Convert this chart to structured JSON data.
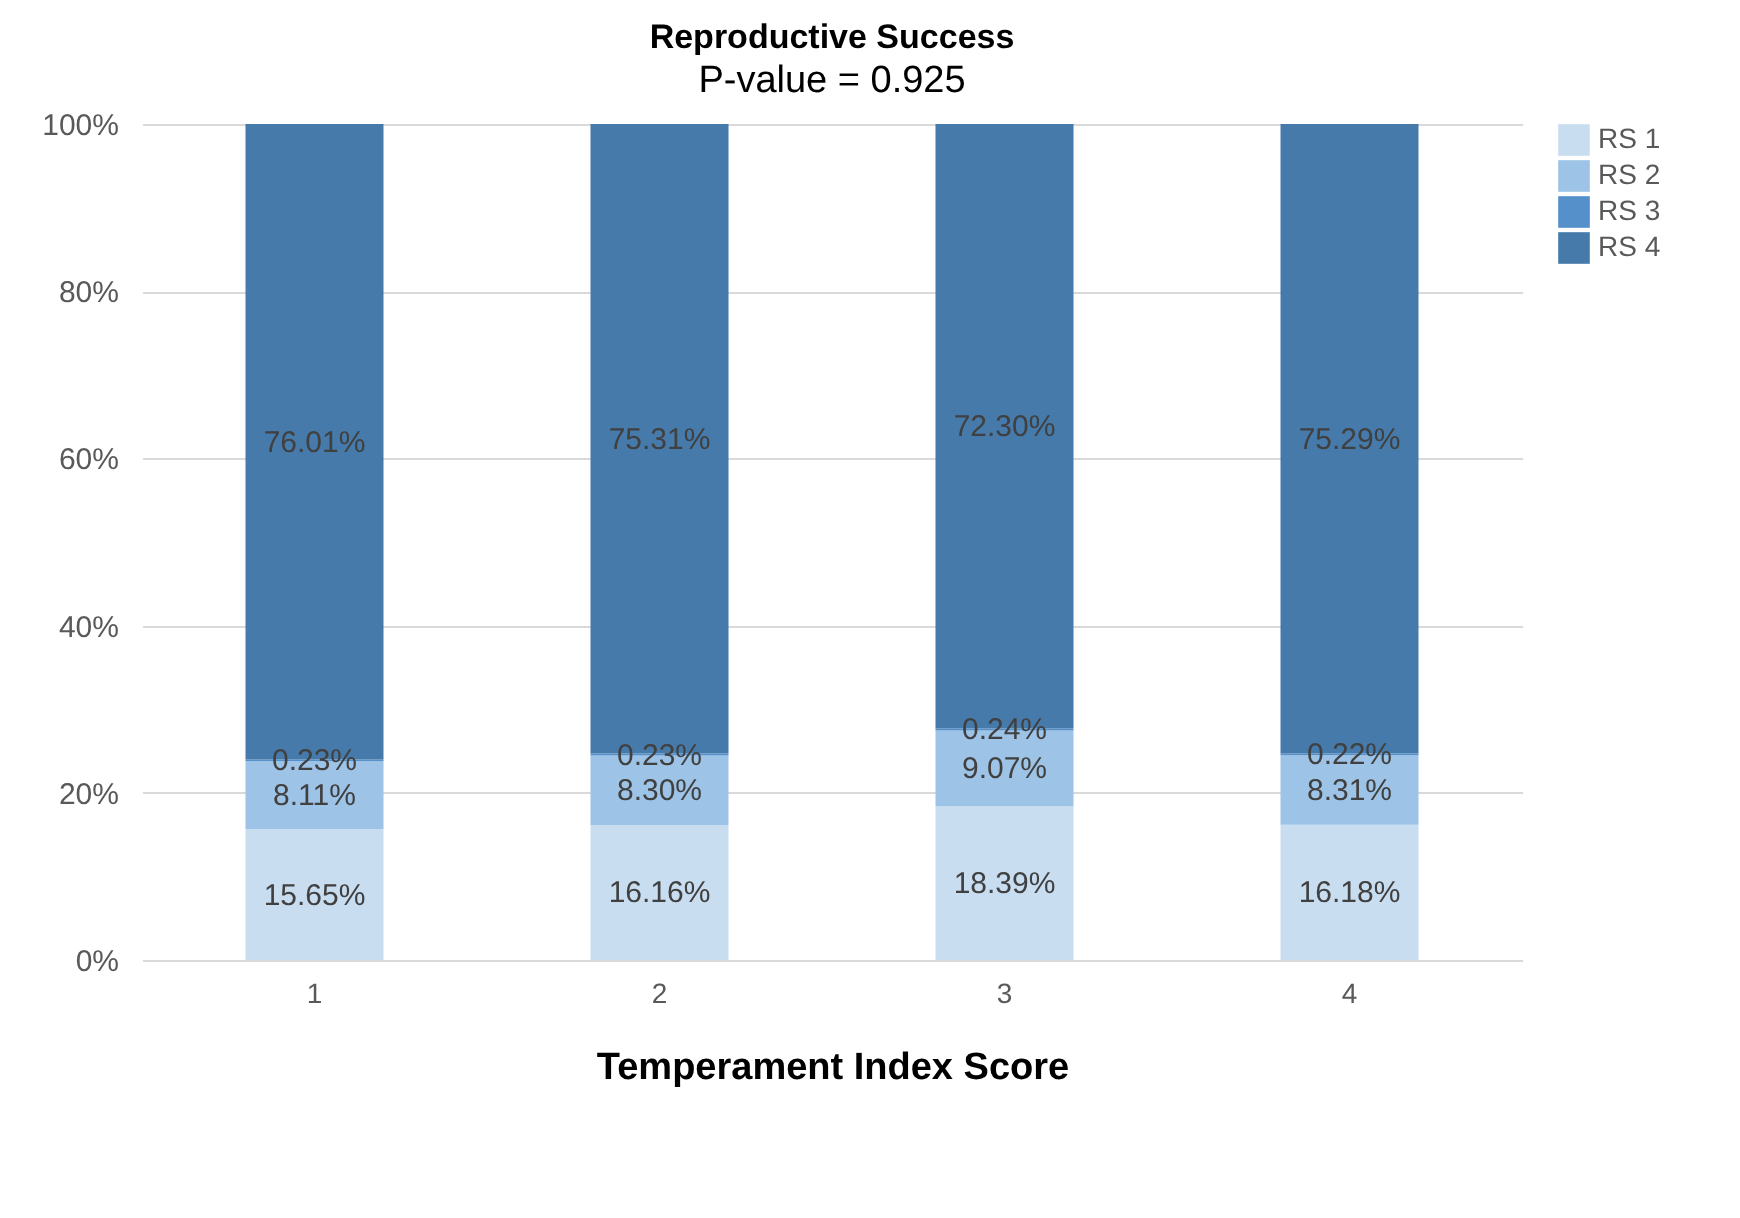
{
  "chart_data": {
    "type": "bar",
    "title": "Reproductive Success",
    "subtitle": "P-value = 0.925",
    "xlabel": "Temperament Index Score",
    "categories": [
      "1",
      "2",
      "3",
      "4"
    ],
    "stacked": true,
    "series": [
      {
        "name": "RS 1",
        "color": "#c9ddf1",
        "values": [
          15.65,
          16.16,
          18.39,
          16.18
        ],
        "value_labels": [
          "15.65%",
          "16.16%",
          "18.39%",
          "16.18%"
        ]
      },
      {
        "name": "RS 2",
        "color": "#9dc3e6",
        "values": [
          8.11,
          8.3,
          9.07,
          8.31
        ],
        "value_labels": [
          "8.11%",
          "8.30%",
          "9.07%",
          "8.31%"
        ]
      },
      {
        "name": "RS 3",
        "color": "#5590cb",
        "values": [
          0.23,
          0.23,
          0.24,
          0.22
        ],
        "value_labels": [
          "0.23%",
          "0.23%",
          "0.24%",
          "0.22%"
        ]
      },
      {
        "name": "RS 4",
        "color": "#467aab",
        "values": [
          76.01,
          75.31,
          72.3,
          75.29
        ],
        "value_labels": [
          "76.01%",
          "75.31%",
          "72.30%",
          "75.29%"
        ]
      }
    ],
    "ylim": [
      0,
      100
    ],
    "yticks": [
      {
        "value": 0,
        "label": "0%"
      },
      {
        "value": 20,
        "label": "20%"
      },
      {
        "value": 40,
        "label": "40%"
      },
      {
        "value": 60,
        "label": "60%"
      },
      {
        "value": 80,
        "label": "80%"
      },
      {
        "value": 100,
        "label": "100%"
      }
    ],
    "grid": "y",
    "legend": "right"
  }
}
